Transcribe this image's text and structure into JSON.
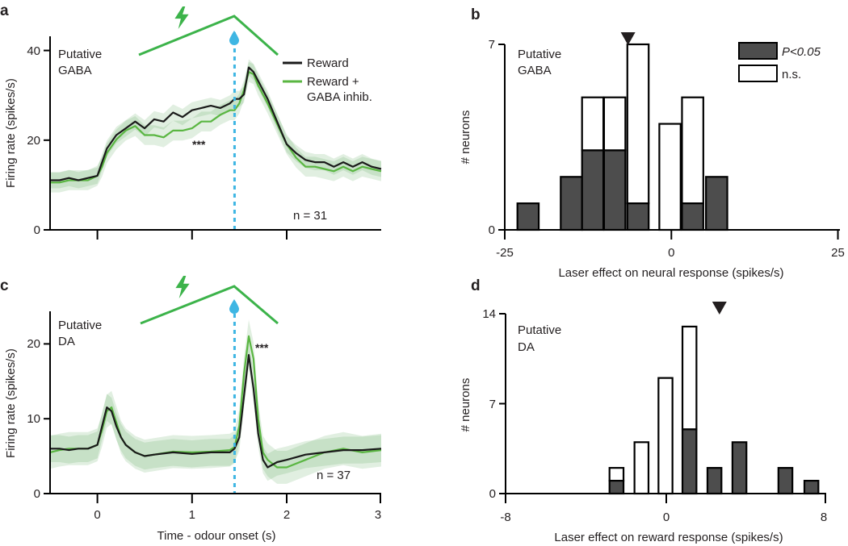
{
  "colors": {
    "reward": "#1a1a1a",
    "inhib": "#5ab642",
    "task": "#3cb34a",
    "water": "#3eb6e3",
    "sig_bar": "#4d4d4d"
  },
  "chart_data": [
    {
      "id": "a",
      "panel_letter": "a",
      "type": "line",
      "title": "",
      "label_lines": [
        "Putative",
        "GABA"
      ],
      "xlabel": "",
      "ylabel": "Firing rate (spikes/s)",
      "xlim": [
        -0.5,
        3.0
      ],
      "ylim": [
        0,
        42
      ],
      "yticks": [
        0,
        20,
        40
      ],
      "ytick_labels": [
        "0",
        "20",
        "40"
      ],
      "xticks": [
        0,
        1,
        2
      ],
      "xtick_labels": [],
      "reward_time": 1.45,
      "annotation": "***",
      "n_label": "n = 31",
      "legend": [
        "Reward",
        "Reward +",
        "GABA inhib."
      ],
      "series": [
        {
          "name": "Reward",
          "x": [
            -0.5,
            -0.4,
            -0.3,
            -0.2,
            -0.1,
            0,
            0.05,
            0.1,
            0.2,
            0.3,
            0.4,
            0.5,
            0.6,
            0.7,
            0.8,
            0.9,
            1.0,
            1.1,
            1.2,
            1.3,
            1.4,
            1.45,
            1.5,
            1.55,
            1.6,
            1.65,
            1.7,
            1.8,
            1.9,
            2.0,
            2.1,
            2.2,
            2.3,
            2.4,
            2.5,
            2.6,
            2.7,
            2.8,
            2.9,
            3.0
          ],
          "y": [
            11,
            11,
            11.5,
            11,
            11.5,
            12,
            15,
            18,
            21,
            22.5,
            24,
            22.5,
            24.5,
            24,
            26,
            25,
            26.5,
            27,
            27.5,
            27,
            28,
            29,
            29,
            30,
            36,
            35,
            33,
            29,
            24,
            19,
            17,
            15.5,
            15,
            15,
            14,
            15,
            14,
            15,
            14,
            13.5
          ]
        },
        {
          "name": "Reward + GABA inhib.",
          "x": [
            -0.5,
            -0.4,
            -0.3,
            -0.2,
            -0.1,
            0,
            0.05,
            0.1,
            0.2,
            0.3,
            0.4,
            0.5,
            0.6,
            0.7,
            0.8,
            0.9,
            1.0,
            1.1,
            1.2,
            1.3,
            1.4,
            1.45,
            1.5,
            1.55,
            1.6,
            1.65,
            1.7,
            1.8,
            1.9,
            2.0,
            2.1,
            2.2,
            2.3,
            2.4,
            2.5,
            2.6,
            2.7,
            2.8,
            2.9,
            3.0
          ],
          "y": [
            10.5,
            10.5,
            11,
            11,
            11,
            12,
            14,
            17,
            20,
            22,
            23,
            21,
            21,
            20.5,
            22,
            22,
            22.5,
            24,
            24,
            25.5,
            26.5,
            26.5,
            28,
            31,
            35,
            34.5,
            32,
            28,
            23.5,
            19,
            16,
            14,
            14,
            13.5,
            13,
            14,
            13,
            14,
            13.5,
            13
          ]
        }
      ]
    },
    {
      "id": "b",
      "panel_letter": "b",
      "type": "bar",
      "title": "",
      "label_lines": [
        "Putative",
        "GABA"
      ],
      "xlabel": "Laser effect on neural response (spikes/s)",
      "ylabel": "# neurons",
      "xlim": [
        -25,
        25
      ],
      "ylim": [
        0,
        7
      ],
      "xticks": [
        -25,
        0,
        25
      ],
      "xtick_labels": [
        "-25",
        "0",
        "25"
      ],
      "yticks": [
        0,
        7
      ],
      "ytick_labels": [
        "0",
        "7"
      ],
      "bin_width": 3.2,
      "bin_centers": [
        -21.5,
        -15,
        -11.8,
        -8.5,
        -5,
        -0.2,
        3.2,
        6.8
      ],
      "significant": [
        1,
        2,
        3,
        3,
        1,
        0,
        1,
        2
      ],
      "not_significant": [
        0,
        0,
        2,
        2,
        6,
        4,
        4,
        0
      ],
      "median_marker": -6.5,
      "legend": [
        "P<0.05",
        "n.s."
      ]
    },
    {
      "id": "c",
      "panel_letter": "c",
      "type": "line",
      "title": "",
      "label_lines": [
        "Putative",
        "DA"
      ],
      "xlabel": "Time - odour onset (s)",
      "ylabel": "Firing rate (spikes/s)",
      "xlim": [
        -0.5,
        3.0
      ],
      "ylim": [
        0,
        24
      ],
      "yticks": [
        0,
        10,
        20
      ],
      "ytick_labels": [
        "0",
        "10",
        "20"
      ],
      "xticks": [
        0,
        1,
        2,
        3
      ],
      "xtick_labels": [
        "0",
        "1",
        "2",
        "3"
      ],
      "reward_time": 1.45,
      "annotation": "***",
      "n_label": "n = 37",
      "series": [
        {
          "name": "Reward",
          "x": [
            -0.5,
            -0.4,
            -0.3,
            -0.2,
            -0.1,
            0,
            0.05,
            0.1,
            0.15,
            0.2,
            0.25,
            0.3,
            0.4,
            0.5,
            0.6,
            0.8,
            1.0,
            1.2,
            1.4,
            1.45,
            1.5,
            1.55,
            1.6,
            1.65,
            1.7,
            1.75,
            1.8,
            1.9,
            2.0,
            2.2,
            2.4,
            2.6,
            2.8,
            3.0
          ],
          "y": [
            6,
            6,
            5.8,
            6,
            6,
            6.5,
            9,
            11.5,
            11,
            9,
            7.5,
            6.5,
            5.5,
            5,
            5.2,
            5.5,
            5.3,
            5.5,
            5.5,
            6,
            7.5,
            13,
            18.5,
            14,
            8,
            4.5,
            3.5,
            4.2,
            4.5,
            5.2,
            5.5,
            5.8,
            5.8,
            6
          ]
        },
        {
          "name": "Reward + GABA inhib.",
          "x": [
            -0.5,
            -0.4,
            -0.3,
            -0.2,
            -0.1,
            0,
            0.05,
            0.1,
            0.15,
            0.2,
            0.25,
            0.3,
            0.4,
            0.5,
            0.6,
            0.8,
            1.0,
            1.2,
            1.4,
            1.45,
            1.5,
            1.55,
            1.6,
            1.65,
            1.7,
            1.75,
            1.8,
            1.9,
            2.0,
            2.2,
            2.4,
            2.6,
            2.8,
            3.0
          ],
          "y": [
            5.5,
            5.8,
            6,
            6,
            6,
            6.5,
            8.5,
            11,
            11.5,
            9.5,
            7.5,
            6.5,
            5.5,
            5,
            5.2,
            5.6,
            5.5,
            5.6,
            5.8,
            6.2,
            9,
            16,
            21,
            18,
            10,
            5.5,
            4.5,
            3.5,
            3.5,
            4.5,
            5.5,
            6,
            5.5,
            5.8
          ]
        }
      ]
    },
    {
      "id": "d",
      "panel_letter": "d",
      "type": "bar",
      "title": "",
      "label_lines": [
        "Putative",
        "DA"
      ],
      "xlabel": "Laser effect on reward response (spikes/s)",
      "ylabel": "# neurons",
      "xlim": [
        -8,
        8
      ],
      "ylim": [
        0,
        14
      ],
      "xticks": [
        -8,
        0,
        8
      ],
      "xtick_labels": [
        "-8",
        "0",
        "8"
      ],
      "yticks": [
        0,
        7,
        14
      ],
      "ytick_labels": [
        "0",
        "7",
        "14"
      ],
      "bin_width": 0.7,
      "bin_centers": [
        -2.45,
        -1.2,
        0,
        1.2,
        2.45,
        3.7,
        6,
        7.3
      ],
      "significant": [
        1,
        0,
        0,
        5,
        2,
        4,
        2,
        1
      ],
      "not_significant": [
        1,
        4,
        9,
        8,
        0,
        0,
        0,
        0
      ],
      "median_marker": 2.7
    }
  ]
}
